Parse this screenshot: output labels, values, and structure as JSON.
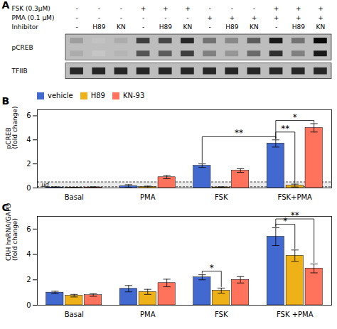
{
  "chart_data": [
    {
      "type": "blot",
      "title": "A",
      "header_rows": [
        {
          "label": "FSK (0.3μM)",
          "values": [
            "-",
            "-",
            "-",
            "+",
            "+",
            "+",
            "-",
            "-",
            "-",
            "+",
            "+",
            "+"
          ]
        },
        {
          "label": "PMA (0.1 μM)",
          "values": [
            "-",
            "-",
            "-",
            "-",
            "-",
            "-",
            "+",
            "+",
            "+",
            "+",
            "+",
            "+"
          ]
        },
        {
          "label": "Inhibitor",
          "values": [
            "-",
            "H89",
            "KN",
            "-",
            "H89",
            "KN",
            "-",
            "H89",
            "KN",
            "-",
            "H89",
            "KN"
          ]
        }
      ],
      "blots": [
        {
          "name": "pCREB",
          "bands": [
            [
              0.28,
              0.12,
              0.22,
              0.72,
              0.68,
              0.82,
              0.48,
              0.38,
              0.58,
              0.88,
              0.48,
              0.96
            ],
            [
              0.22,
              0.1,
              0.18,
              0.62,
              0.58,
              0.72,
              0.42,
              0.32,
              0.52,
              0.78,
              0.42,
              0.88
            ]
          ]
        },
        {
          "name": "TFIIB"
        }
      ]
    },
    {
      "type": "bar",
      "title": "B",
      "categories": [
        "Basal",
        "PMA",
        "FSK",
        "FSK+PMA"
      ],
      "ylabel": "pCREB\n(fold change)",
      "series": [
        {
          "name": "vehicle",
          "values": [
            0.05,
            0.15,
            1.85,
            3.7
          ],
          "errors": [
            0.04,
            0.12,
            0.15,
            0.3
          ]
        },
        {
          "name": "H89",
          "values": [
            0.02,
            0.08,
            0.05,
            0.2
          ],
          "errors": [
            0.02,
            0.07,
            0.04,
            0.12
          ]
        },
        {
          "name": "KN-93",
          "values": [
            0.05,
            0.9,
            1.45,
            5.0
          ],
          "errors": [
            0.04,
            0.13,
            0.15,
            0.35
          ]
        }
      ],
      "ylim": [
        0,
        6.5
      ],
      "yticks": [
        0,
        2,
        4,
        6
      ],
      "grid": false,
      "legend": "upper left",
      "ud_band": {
        "label": "ud",
        "top": 0.5
      },
      "reference_lines": [
        0.1
      ],
      "annotations": [
        {
          "text": "**",
          "between": [
            {
              "category": "FSK",
              "series": "vehicle"
            },
            {
              "category": "FSK+PMA",
              "series": "vehicle"
            }
          ]
        },
        {
          "text": "**",
          "between": [
            {
              "category": "FSK+PMA",
              "series": "vehicle"
            },
            {
              "category": "FSK+PMA",
              "series": "H89"
            }
          ]
        },
        {
          "text": "*",
          "between": [
            {
              "category": "FSK+PMA",
              "series": "vehicle"
            },
            {
              "category": "FSK+PMA",
              "series": "KN-93"
            }
          ]
        }
      ]
    },
    {
      "type": "bar",
      "title": "C",
      "categories": [
        "Basal",
        "PMA",
        "FSK",
        "FSK +PMA"
      ],
      "ylabel": "CRH hnRNA/GAPDH\n(fold change)",
      "series": [
        {
          "name": "vehicle",
          "values": [
            1.0,
            1.3,
            2.2,
            5.4
          ],
          "errors": [
            0.1,
            0.25,
            0.2,
            0.7
          ]
        },
        {
          "name": "H89",
          "values": [
            0.75,
            1.05,
            1.15,
            3.9
          ],
          "errors": [
            0.1,
            0.2,
            0.2,
            0.45
          ]
        },
        {
          "name": "KN-93",
          "values": [
            0.8,
            1.75,
            2.0,
            2.9
          ],
          "errors": [
            0.1,
            0.3,
            0.25,
            0.35
          ]
        }
      ],
      "ylim": [
        0,
        7.0
      ],
      "yticks": [
        0,
        2,
        4,
        6
      ],
      "grid": false,
      "annotations": [
        {
          "text": "*",
          "between": [
            {
              "category": "FSK",
              "series": "vehicle"
            },
            {
              "category": "FSK",
              "series": "H89"
            }
          ]
        },
        {
          "text": "*",
          "between": [
            {
              "category": "FSK +PMA",
              "series": "vehicle"
            },
            {
              "category": "FSK +PMA",
              "series": "H89"
            }
          ]
        },
        {
          "text": "**",
          "between": [
            {
              "category": "FSK +PMA",
              "series": "vehicle"
            },
            {
              "category": "FSK +PMA",
              "series": "KN-93"
            }
          ]
        }
      ]
    }
  ]
}
